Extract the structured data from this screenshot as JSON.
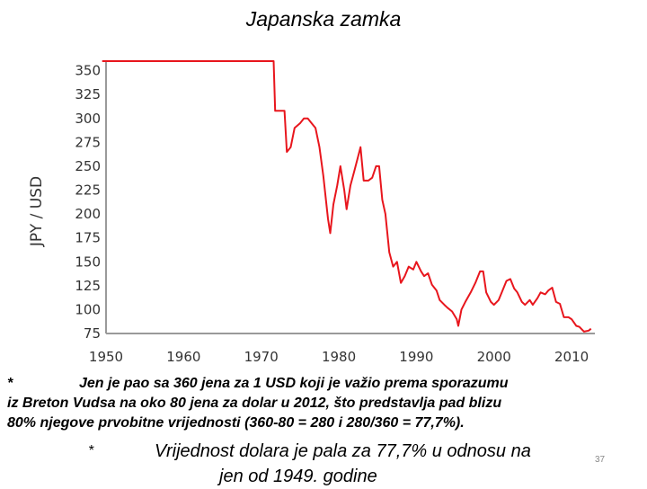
{
  "slide": {
    "title": "Japanska zamka",
    "note_star": "*",
    "note_line1": "Jen je pao sa 360 jena za 1 USD koji je važio prema sporazumu",
    "note_line2": "iz Breton Vudsa na oko 80 jena za dolar u 2012, što predstavlja pad blizu",
    "note_line3": "80% njegove prvobitne vrijednosti (360-80 = 280 i 280/360 = 77,7%).",
    "summary_star": "*",
    "summary_line1": "Vrijednost dolara je pala za 77,7% u odnosu na",
    "summary_line2": "jen od 1949. godine",
    "slide_number": "37"
  },
  "chart_data": {
    "type": "line",
    "title": "",
    "xlabel": "",
    "ylabel": "JPY / USD",
    "xlim": [
      1950,
      2013
    ],
    "ylim": [
      75,
      360
    ],
    "x_ticks": [
      "1950",
      "1960",
      "1970",
      "1980",
      "1990",
      "2000",
      "2010"
    ],
    "y_ticks": [
      "75",
      "100",
      "125",
      "150",
      "175",
      "200",
      "225",
      "250",
      "275",
      "300",
      "325",
      "350"
    ],
    "grid": false,
    "legend": "none",
    "line_color": "#e8161d",
    "series": [
      {
        "name": "",
        "points": [
          [
            1949.5,
            360
          ],
          [
            1971.6,
            360
          ],
          [
            1971.8,
            308
          ],
          [
            1973.0,
            308
          ],
          [
            1973.3,
            265
          ],
          [
            1973.8,
            270
          ],
          [
            1974.3,
            290
          ],
          [
            1975.0,
            295
          ],
          [
            1975.5,
            300
          ],
          [
            1976.0,
            300
          ],
          [
            1976.5,
            295
          ],
          [
            1977.0,
            290
          ],
          [
            1977.5,
            270
          ],
          [
            1978.0,
            240
          ],
          [
            1978.6,
            195
          ],
          [
            1978.9,
            180
          ],
          [
            1979.3,
            210
          ],
          [
            1979.8,
            230
          ],
          [
            1980.2,
            250
          ],
          [
            1980.7,
            225
          ],
          [
            1981.0,
            205
          ],
          [
            1981.5,
            230
          ],
          [
            1982.0,
            245
          ],
          [
            1982.8,
            270
          ],
          [
            1983.2,
            235
          ],
          [
            1983.8,
            235
          ],
          [
            1984.3,
            238
          ],
          [
            1984.8,
            250
          ],
          [
            1985.2,
            250
          ],
          [
            1985.6,
            215
          ],
          [
            1986.0,
            200
          ],
          [
            1986.5,
            160
          ],
          [
            1987.0,
            145
          ],
          [
            1987.5,
            150
          ],
          [
            1988.0,
            128
          ],
          [
            1988.5,
            135
          ],
          [
            1989.0,
            145
          ],
          [
            1989.6,
            142
          ],
          [
            1990.0,
            150
          ],
          [
            1990.6,
            140
          ],
          [
            1991.0,
            135
          ],
          [
            1991.5,
            138
          ],
          [
            1992.0,
            126
          ],
          [
            1992.6,
            120
          ],
          [
            1993.0,
            110
          ],
          [
            1993.6,
            105
          ],
          [
            1994.0,
            102
          ],
          [
            1994.6,
            98
          ],
          [
            1995.2,
            90
          ],
          [
            1995.4,
            83
          ],
          [
            1995.8,
            100
          ],
          [
            1996.3,
            108
          ],
          [
            1997.0,
            118
          ],
          [
            1997.6,
            128
          ],
          [
            1998.2,
            140
          ],
          [
            1998.6,
            140
          ],
          [
            1999.0,
            118
          ],
          [
            1999.6,
            108
          ],
          [
            2000.0,
            105
          ],
          [
            2000.6,
            110
          ],
          [
            2001.0,
            118
          ],
          [
            2001.6,
            130
          ],
          [
            2002.1,
            132
          ],
          [
            2002.6,
            122
          ],
          [
            2003.0,
            118
          ],
          [
            2003.6,
            108
          ],
          [
            2004.0,
            105
          ],
          [
            2004.6,
            110
          ],
          [
            2005.0,
            105
          ],
          [
            2005.6,
            112
          ],
          [
            2006.0,
            118
          ],
          [
            2006.6,
            116
          ],
          [
            2007.0,
            120
          ],
          [
            2007.5,
            123
          ],
          [
            2008.0,
            108
          ],
          [
            2008.5,
            106
          ],
          [
            2009.0,
            92
          ],
          [
            2009.6,
            92
          ],
          [
            2010.0,
            90
          ],
          [
            2010.6,
            83
          ],
          [
            2011.0,
            82
          ],
          [
            2011.6,
            77
          ],
          [
            2012.2,
            78
          ],
          [
            2012.5,
            80
          ]
        ]
      }
    ]
  }
}
